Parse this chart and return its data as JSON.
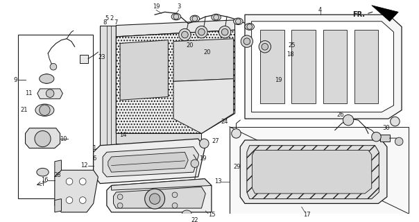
{
  "bg": "#ffffff",
  "lc": "#1a1a1a",
  "fig_w": 6.04,
  "fig_h": 3.2,
  "dpi": 100
}
